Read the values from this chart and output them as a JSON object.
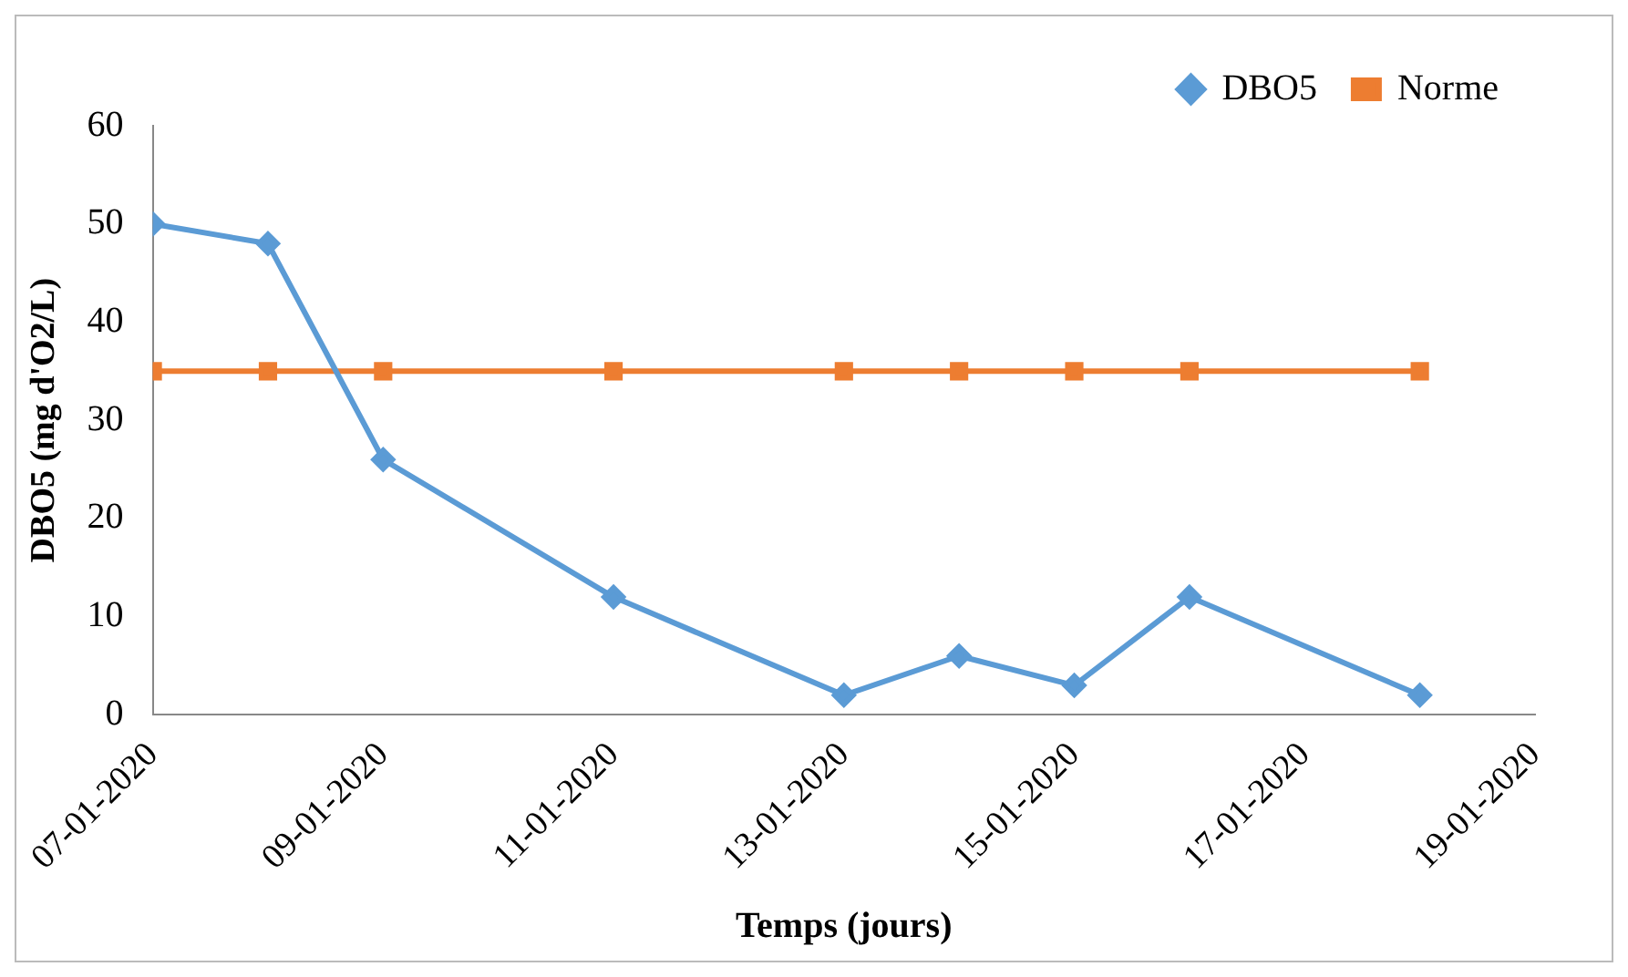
{
  "chart_data": {
    "type": "line",
    "xlabel": "Temps (jours)",
    "ylabel": "DBO5 (mg d'O2/L)",
    "x": [
      "2020-01-07",
      "2020-01-08",
      "2020-01-09",
      "2020-01-11",
      "2020-01-13",
      "2020-01-14",
      "2020-01-15",
      "2020-01-16",
      "2020-01-18"
    ],
    "series": [
      {
        "name": "DBO5",
        "color": "#5b9bd5",
        "marker": "diamond",
        "values": [
          50,
          48,
          26,
          12,
          2,
          6,
          3,
          12,
          2
        ]
      },
      {
        "name": "Norme",
        "color": "#ed7d31",
        "marker": "square",
        "values": [
          35,
          35,
          35,
          35,
          35,
          35,
          35,
          35,
          35
        ]
      }
    ],
    "xlim": [
      "2020-01-07",
      "2020-01-19"
    ],
    "xticks": [
      {
        "value": "2020-01-07",
        "label": "07-01-2020"
      },
      {
        "value": "2020-01-09",
        "label": "09-01-2020"
      },
      {
        "value": "2020-01-11",
        "label": "11-01-2020"
      },
      {
        "value": "2020-01-13",
        "label": "13-01-2020"
      },
      {
        "value": "2020-01-15",
        "label": "15-01-2020"
      },
      {
        "value": "2020-01-17",
        "label": "17-01-2020"
      },
      {
        "value": "2020-01-19",
        "label": "19-01-2020"
      }
    ],
    "ylim": [
      0,
      60
    ],
    "yticks": [
      0,
      10,
      20,
      30,
      40,
      50,
      60
    ],
    "grid": false,
    "legend": "top right",
    "line_style": "solid"
  }
}
